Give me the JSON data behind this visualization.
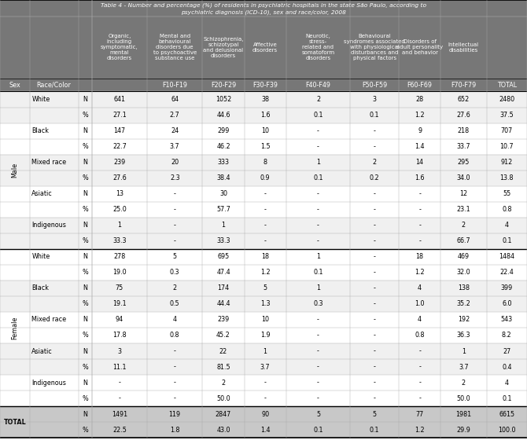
{
  "title1": "Table 4 - Number and percentage (%) of residents in psychiatric hospitals in the state São Paulo, according to",
  "title2": "psychiatric diagnosis (ICD-10), sex and race/color, 2008",
  "header_texts": [
    "Organic,\nincluding\nsymptomatic,\nmental\ndisorders",
    "Mental and\nbehavioural\ndisorders due\nto psychoactive\nsubstance use",
    "Schizophrenia,\nschizotypal\nand delusional\ndisorders",
    "Affective\ndisorders",
    "Neurotic,\nstress-\nrelated and\nsomatoform\ndisorders",
    "Behavioural\nsyndromes associated\nwith physiological\ndisturbances and\nphysical factors",
    "Disorders of\nadult personality\nand behavior",
    "Intellectual\ndisabilities",
    ""
  ],
  "icd_codes": [
    "",
    "F10-F19",
    "F20-F29",
    "F30-F39",
    "F40-F49",
    "F50-F59",
    "F60-F69",
    "F70-F79",
    "TOTAL"
  ],
  "header_bg": "#777777",
  "total_bg": "#c8c8c8",
  "white": "#ffffff",
  "light_gray": "#f0f0f0",
  "rows": [
    {
      "sex": "Male",
      "race": "White",
      "type": "N",
      "vals": [
        "641",
        "64",
        "1052",
        "38",
        "2",
        "3",
        "28",
        "652",
        "2480"
      ]
    },
    {
      "sex": "",
      "race": "",
      "type": "%",
      "vals": [
        "27.1",
        "2.7",
        "44.6",
        "1.6",
        "0.1",
        "0.1",
        "1.2",
        "27.6",
        "37.5"
      ]
    },
    {
      "sex": "",
      "race": "Black",
      "type": "N",
      "vals": [
        "147",
        "24",
        "299",
        "10",
        "-",
        "-",
        "9",
        "218",
        "707"
      ]
    },
    {
      "sex": "",
      "race": "",
      "type": "%",
      "vals": [
        "22.7",
        "3.7",
        "46.2",
        "1.5",
        "-",
        "-",
        "1.4",
        "33.7",
        "10.7"
      ]
    },
    {
      "sex": "",
      "race": "Mixed race",
      "type": "N",
      "vals": [
        "239",
        "20",
        "333",
        "8",
        "1",
        "2",
        "14",
        "295",
        "912"
      ]
    },
    {
      "sex": "",
      "race": "",
      "type": "%",
      "vals": [
        "27.6",
        "2.3",
        "38.4",
        "0.9",
        "0.1",
        "0.2",
        "1.6",
        "34.0",
        "13.8"
      ]
    },
    {
      "sex": "",
      "race": "Asiatic",
      "type": "N",
      "vals": [
        "13",
        "-",
        "30",
        "-",
        "-",
        "-",
        "-",
        "12",
        "55"
      ]
    },
    {
      "sex": "",
      "race": "",
      "type": "%",
      "vals": [
        "25.0",
        "-",
        "57.7",
        "-",
        "-",
        "-",
        "-",
        "23.1",
        "0.8"
      ]
    },
    {
      "sex": "",
      "race": "Indigenous",
      "type": "N",
      "vals": [
        "1",
        "-",
        "1",
        "-",
        "-",
        "-",
        "-",
        "2",
        "4"
      ]
    },
    {
      "sex": "",
      "race": "",
      "type": "%",
      "vals": [
        "33.3",
        "-",
        "33.3",
        "-",
        "-",
        "-",
        "-",
        "66.7",
        "0.1"
      ]
    },
    {
      "sex": "Female",
      "race": "White",
      "type": "N",
      "vals": [
        "278",
        "5",
        "695",
        "18",
        "1",
        "-",
        "18",
        "469",
        "1484"
      ]
    },
    {
      "sex": "",
      "race": "",
      "type": "%",
      "vals": [
        "19.0",
        "0.3",
        "47.4",
        "1.2",
        "0.1",
        "-",
        "1.2",
        "32.0",
        "22.4"
      ]
    },
    {
      "sex": "",
      "race": "Black",
      "type": "N",
      "vals": [
        "75",
        "2",
        "174",
        "5",
        "1",
        "-",
        "4",
        "138",
        "399"
      ]
    },
    {
      "sex": "",
      "race": "",
      "type": "%",
      "vals": [
        "19.1",
        "0.5",
        "44.4",
        "1.3",
        "0.3",
        "-",
        "1.0",
        "35.2",
        "6.0"
      ]
    },
    {
      "sex": "",
      "race": "Mixed race",
      "type": "N",
      "vals": [
        "94",
        "4",
        "239",
        "10",
        "-",
        "-",
        "4",
        "192",
        "543"
      ]
    },
    {
      "sex": "",
      "race": "",
      "type": "%",
      "vals": [
        "17.8",
        "0.8",
        "45.2",
        "1.9",
        "-",
        "-",
        "0.8",
        "36.3",
        "8.2"
      ]
    },
    {
      "sex": "",
      "race": "Asiatic",
      "type": "N",
      "vals": [
        "3",
        "-",
        "22",
        "1",
        "-",
        "-",
        "-",
        "1",
        "27"
      ]
    },
    {
      "sex": "",
      "race": "",
      "type": "%",
      "vals": [
        "11.1",
        "-",
        "81.5",
        "3.7",
        "-",
        "-",
        "-",
        "3.7",
        "0.4"
      ]
    },
    {
      "sex": "",
      "race": "Indigenous",
      "type": "N",
      "vals": [
        "-",
        "-",
        "2",
        "-",
        "-",
        "-",
        "-",
        "2",
        "4"
      ]
    },
    {
      "sex": "",
      "race": "",
      "type": "%",
      "vals": [
        "-",
        "-",
        "50.0",
        "-",
        "-",
        "-",
        "-",
        "50.0",
        "0.1"
      ]
    },
    {
      "sex": "TOTAL",
      "race": "",
      "type": "N",
      "vals": [
        "1491",
        "119",
        "2847",
        "90",
        "5",
        "5",
        "77",
        "1981",
        "6615"
      ]
    },
    {
      "sex": "",
      "race": "",
      "type": "%",
      "vals": [
        "22.5",
        "1.8",
        "43.0",
        "1.4",
        "0.1",
        "0.1",
        "1.2",
        "29.9",
        "100.0"
      ]
    }
  ]
}
